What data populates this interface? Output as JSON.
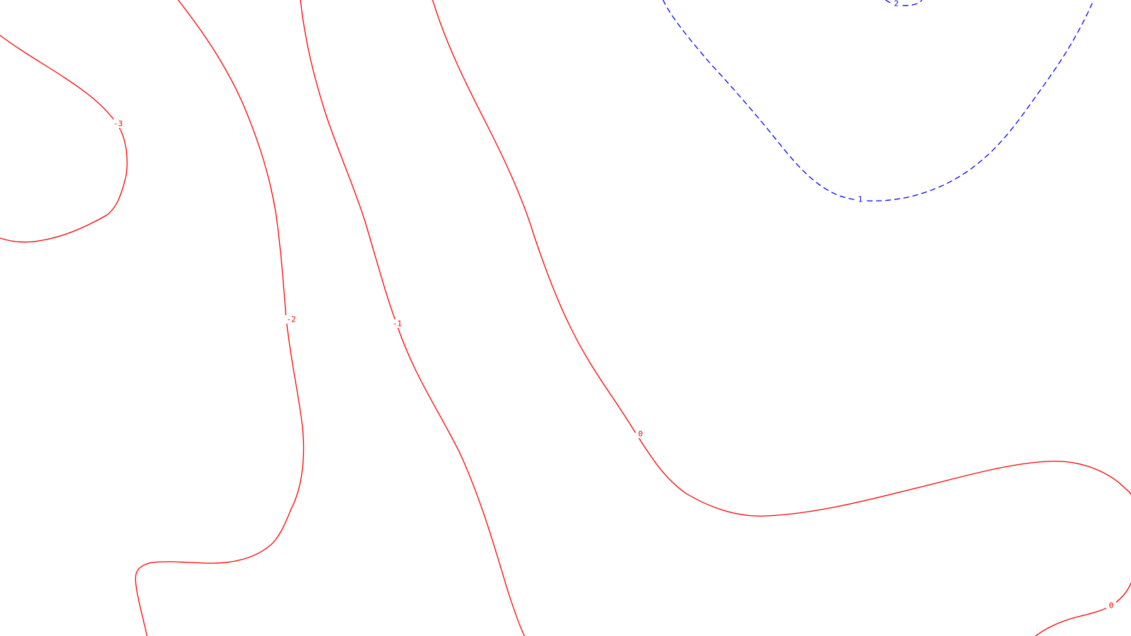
{
  "chart_data": {
    "type": "contour",
    "title": "",
    "xlabel": "",
    "ylabel": "",
    "grid": false,
    "legend": "none",
    "colors": {
      "positive": "#ff0000",
      "negative": "#0000ff",
      "background": "#ffffff"
    },
    "levels": [
      {
        "value": -3,
        "label": "-3",
        "line_style": "solid",
        "color": "#ff0000"
      },
      {
        "value": -2,
        "label": "-2",
        "line_style": "solid",
        "color": "#ff0000"
      },
      {
        "value": -1,
        "label": "-1",
        "line_style": "solid",
        "color": "#ff0000"
      },
      {
        "value": 0,
        "label": "0",
        "line_style": "solid",
        "color": "#ff0000"
      },
      {
        "value": 1,
        "label": "1",
        "line_style": "dashed",
        "color": "#0000ff"
      },
      {
        "value": 2,
        "label": "2",
        "line_style": "dashed",
        "color": "#0000ff"
      }
    ]
  }
}
